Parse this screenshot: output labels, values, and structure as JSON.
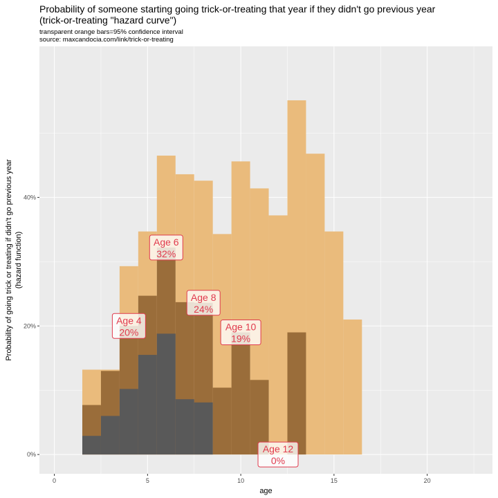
{
  "title_line1": "Probability of someone starting going trick-or-treating that year if they didn't go previous year",
  "title_line2": "(trick-or-treating \"hazard curve\")",
  "subtitle_line1": "transparent orange bars=95% confidence interval",
  "subtitle_line2": "source: maxcandocia.com/link/trick-or-treating",
  "chart_data": {
    "type": "bar",
    "xlabel": "age",
    "ylabel_line1": "Probability of going trick or treating if didn't go previous year",
    "ylabel_line2": "(hazard function)",
    "xlim": [
      -0.8,
      23.5
    ],
    "ylim": [
      -0.03,
      0.635
    ],
    "x_ticks": [
      0,
      5,
      10,
      15,
      20
    ],
    "y_ticks": [
      0,
      0.2,
      0.4
    ],
    "y_tick_labels": [
      "0%",
      "20%",
      "40%"
    ],
    "grid": true,
    "ages": [
      2,
      3,
      4,
      5,
      6,
      7,
      8,
      9,
      10,
      11,
      12,
      13,
      14,
      15,
      16
    ],
    "ci_upper": [
      0.132,
      0.132,
      0.293,
      0.347,
      0.465,
      0.436,
      0.426,
      0.343,
      0.456,
      0.414,
      0.372,
      0.551,
      0.468,
      0.347,
      0.21
    ],
    "ci_lower": [
      0.077,
      0.13,
      0.2,
      0.247,
      0.322,
      0.237,
      0.236,
      0.104,
      0.19,
      0.116,
      0,
      0.19,
      0,
      0,
      0
    ],
    "estimate": [
      0.029,
      0.06,
      0.102,
      0.155,
      0.188,
      0.086,
      0.081,
      0,
      0,
      0,
      0,
      0,
      0,
      0,
      0
    ],
    "colors": {
      "ci": "#eabb7c",
      "mid": "#9a6d3a",
      "estimate": "#595959",
      "annotation": "#e03a4d",
      "panel": "#ebebeb"
    },
    "annotations": [
      {
        "age": 4,
        "label": "Age 4",
        "value_label": "20%"
      },
      {
        "age": 6,
        "label": "Age 6",
        "value_label": "32%"
      },
      {
        "age": 8,
        "label": "Age 8",
        "value_label": "24%"
      },
      {
        "age": 10,
        "label": "Age 10",
        "value_label": "19%"
      },
      {
        "age": 12,
        "label": "Age 12",
        "value_label": "0%"
      }
    ]
  }
}
